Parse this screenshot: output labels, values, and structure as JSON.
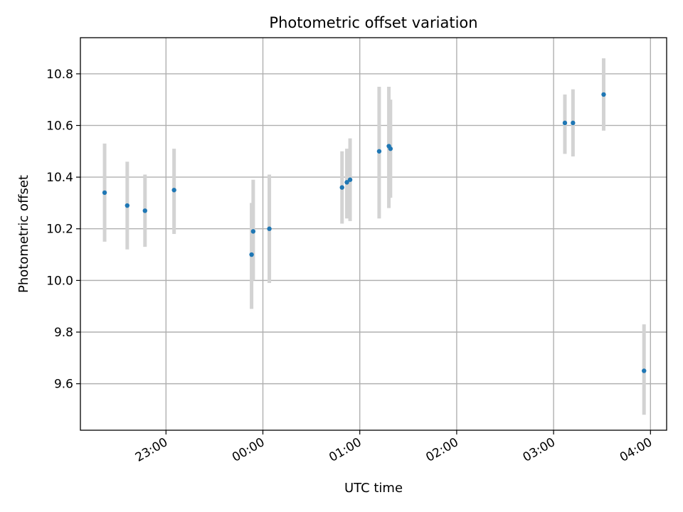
{
  "chart_data": {
    "type": "scatter",
    "title": "Photometric offset variation",
    "xlabel": "UTC time",
    "ylabel": "Photometric offset",
    "grid": true,
    "legend": "none",
    "colors": {
      "points": "#1f77b4",
      "errorbars": "#d3d3d3",
      "grid": "#b0b0b0",
      "axes": "#000000"
    },
    "xlim": [
      "22:07",
      "04:10"
    ],
    "ylim": [
      9.42,
      10.94
    ],
    "x_ticks": [
      "23:00",
      "00:00",
      "01:00",
      "02:00",
      "03:00",
      "04:00"
    ],
    "y_ticks": [
      "9.6",
      "9.8",
      "10.0",
      "10.2",
      "10.4",
      "10.6",
      "10.8"
    ],
    "series": [
      {
        "points": [
          {
            "x": "22:22",
            "y": 10.34,
            "ylow": 10.15,
            "yhigh": 10.53
          },
          {
            "x": "22:36",
            "y": 10.29,
            "ylow": 10.12,
            "yhigh": 10.46
          },
          {
            "x": "22:47",
            "y": 10.27,
            "ylow": 10.13,
            "yhigh": 10.41
          },
          {
            "x": "23:05",
            "y": 10.35,
            "ylow": 10.18,
            "yhigh": 10.51
          },
          {
            "x": "23:53",
            "y": 10.1,
            "ylow": 9.89,
            "yhigh": 10.3
          },
          {
            "x": "23:54",
            "y": 10.19,
            "ylow": 10.0,
            "yhigh": 10.39
          },
          {
            "x": "00:04",
            "y": 10.2,
            "ylow": 9.99,
            "yhigh": 10.41
          },
          {
            "x": "00:49",
            "y": 10.36,
            "ylow": 10.22,
            "yhigh": 10.5
          },
          {
            "x": "00:52",
            "y": 10.38,
            "ylow": 10.24,
            "yhigh": 10.51
          },
          {
            "x": "00:54",
            "y": 10.39,
            "ylow": 10.23,
            "yhigh": 10.55
          },
          {
            "x": "01:12",
            "y": 10.5,
            "ylow": 10.24,
            "yhigh": 10.75
          },
          {
            "x": "01:18",
            "y": 10.52,
            "ylow": 10.28,
            "yhigh": 10.75
          },
          {
            "x": "01:19",
            "y": 10.51,
            "ylow": 10.32,
            "yhigh": 10.7
          },
          {
            "x": "03:07",
            "y": 10.61,
            "ylow": 10.49,
            "yhigh": 10.72
          },
          {
            "x": "03:12",
            "y": 10.61,
            "ylow": 10.48,
            "yhigh": 10.74
          },
          {
            "x": "03:31",
            "y": 10.72,
            "ylow": 10.58,
            "yhigh": 10.86
          },
          {
            "x": "03:56",
            "y": 9.65,
            "ylow": 9.48,
            "yhigh": 9.83
          }
        ]
      }
    ]
  }
}
